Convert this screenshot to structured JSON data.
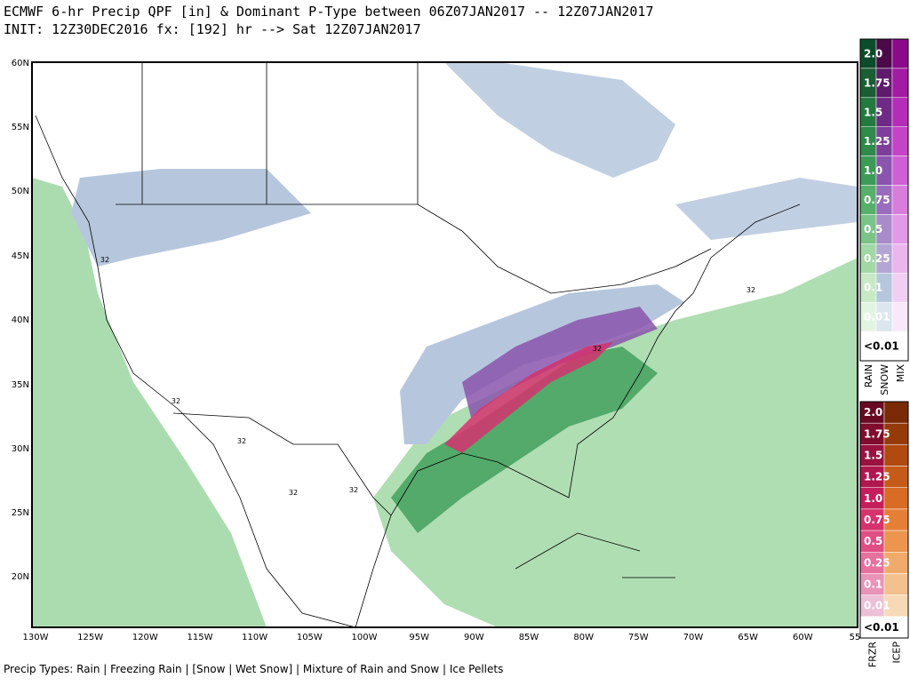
{
  "header": {
    "line1": "ECMWF 6-hr Precip QPF [in] & Dominant P-Type between 06Z07JAN2017 -- 12Z07JAN2017",
    "line2": "INIT: 12Z30DEC2016 fx: [192] hr --> Sat 12Z07JAN2017"
  },
  "map": {
    "lat_labels": [
      "60N",
      "55N",
      "50N",
      "45N",
      "40N",
      "35N",
      "30N",
      "25N",
      "20N"
    ],
    "lon_labels": [
      "130W",
      "125W",
      "120W",
      "115W",
      "110W",
      "105W",
      "100W",
      "95W",
      "90W",
      "85W",
      "80W",
      "75W",
      "70W",
      "65W",
      "60W",
      "55"
    ],
    "contour_labels": [
      "32",
      "32",
      "32",
      "32",
      "32",
      "32",
      "32"
    ]
  },
  "legend_top": {
    "values": [
      "2.0",
      "1.75",
      "1.5",
      "1.25",
      "1.0",
      "0.75",
      "0.5",
      "0.25",
      "0.1",
      "0.01",
      "<0.01"
    ],
    "columns": [
      "RAIN",
      "SNOW",
      "MIX"
    ],
    "colors": [
      [
        "#0b4d2a",
        "#1a5e33",
        "#237a3f",
        "#2e8b4a",
        "#3c9c57",
        "#57b06a",
        "#7bc487",
        "#a2d8a6",
        "#c7e9c6",
        "#e4f4e3",
        "#ffffff"
      ],
      [
        "#4a0a4a",
        "#5e1a6b",
        "#6e2a85",
        "#7d3f9a",
        "#8a55ad",
        "#9a6cbd",
        "#a98bc9",
        "#b3a5d4",
        "#b6c7dd",
        "#dbe6ef",
        "#ffffff"
      ],
      [
        "#8a0a8a",
        "#a31aa3",
        "#b52cb8",
        "#c444c8",
        "#cf5fd4",
        "#d97ddd",
        "#e29ae6",
        "#ebb6ee",
        "#f1cff3",
        "#f8e8f9",
        "#ffffff"
      ]
    ]
  },
  "legend_bottom": {
    "values": [
      "2.0",
      "1.75",
      "1.5",
      "1.25",
      "1.0",
      "0.75",
      "0.5",
      "0.25",
      "0.1",
      "0.01",
      "<0.01"
    ],
    "columns": [
      "FRZR",
      "ICEP"
    ],
    "colors": [
      [
        "#6a0a22",
        "#800d2e",
        "#9a1240",
        "#b0174f",
        "#c41f5c",
        "#d6336e",
        "#e04e86",
        "#e6709e",
        "#e893b8",
        "#ecc0d6",
        "#ffffff"
      ],
      [
        "#7a2a05",
        "#963a0a",
        "#b04a10",
        "#c65a18",
        "#d96c24",
        "#e57f36",
        "#ec954e",
        "#f0ab6a",
        "#f3c18e",
        "#f7d9b8",
        "#ffffff"
      ]
    ]
  },
  "footer": "Precip Types: Rain | Freezing Rain | [Snow | Wet Snow] | Mixture of Rain and Snow | Ice Pellets"
}
